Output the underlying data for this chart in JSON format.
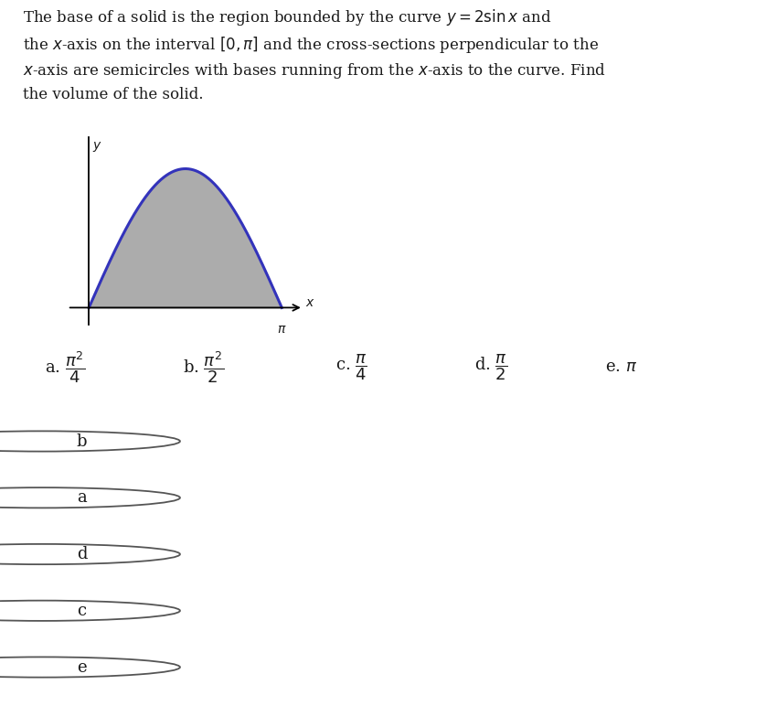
{
  "bg_color": "#f0eeeb",
  "white_bg": "#ffffff",
  "text_color": "#1a1a1a",
  "curve_color": "#3333bb",
  "fill_color": "#909090",
  "fill_alpha": 0.75,
  "curve_lw": 2.2,
  "choices": [
    {
      "label": "a.",
      "expr": "$\\dfrac{\\pi^2}{4}$"
    },
    {
      "label": "b.",
      "expr": "$\\dfrac{\\pi^2}{2}$"
    },
    {
      "label": "c.",
      "expr": "$\\dfrac{\\pi}{4}$"
    },
    {
      "label": "d.",
      "expr": "$\\dfrac{\\pi}{2}$"
    },
    {
      "label": "e.",
      "expr": "$\\pi$"
    }
  ],
  "radio_options": [
    "b",
    "a",
    "d",
    "c",
    "e"
  ],
  "line_color": "#cccccc",
  "radio_circle_color": "#555555",
  "separator_color": "#bbbbbb"
}
